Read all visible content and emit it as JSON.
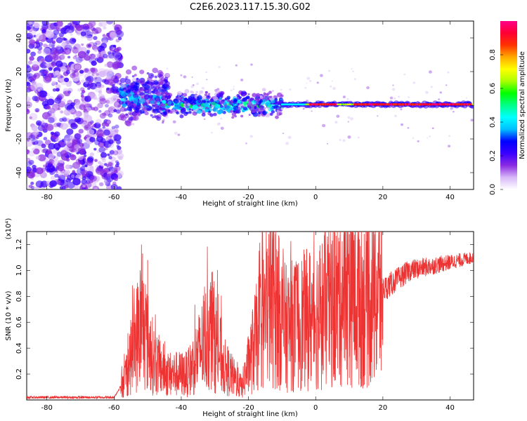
{
  "figure_title": "C2E6.2023.117.15.30.G02",
  "chart_data": [
    {
      "type": "heatmap",
      "xlabel": "Height of straight line (km)",
      "ylabel": "Frequency (Hz)",
      "xlim": [
        -86,
        47
      ],
      "ylim": [
        -50,
        50
      ],
      "x_ticks": [
        -80,
        -60,
        -40,
        -20,
        0,
        20,
        40
      ],
      "y_ticks": [
        -40,
        -20,
        0,
        20,
        40
      ],
      "colorbar": {
        "label": "Normalized spectral amplitude",
        "range": [
          0,
          1
        ],
        "ticks": [
          0.0,
          0.2,
          0.4,
          0.6,
          0.8
        ],
        "colormap": [
          "#ffffff",
          "#d8b8f8",
          "#8a2be2",
          "#3a00ff",
          "#0000ff",
          "#00bfff",
          "#00ffff",
          "#00ff88",
          "#00ff00",
          "#aaff00",
          "#ffff00",
          "#ffaa00",
          "#ff3300",
          "#ff0033",
          "#ff0088"
        ]
      },
      "description_regions": [
        {
          "x_range": [
            -86,
            -58
          ],
          "freq_spread": 50,
          "amplitude": 0.15
        },
        {
          "x_range": [
            -58,
            -45
          ],
          "freq_center": 5,
          "freq_spread": 12,
          "amplitude": 0.45
        },
        {
          "x_range": [
            -45,
            -10
          ],
          "freq_center": 0,
          "freq_spread": 6,
          "amplitude": 0.5
        },
        {
          "x_range": [
            -10,
            47
          ],
          "freq_center": 0,
          "freq_spread": 2,
          "amplitude": 0.95
        }
      ]
    },
    {
      "type": "line",
      "xlabel": "Height of straight line (km)",
      "ylabel": "SNR (10 * v/v)",
      "y_scale_label": "(x10⁴)",
      "xlim": [
        -86,
        47
      ],
      "ylim": [
        0,
        1.3
      ],
      "x_ticks": [
        -80,
        -60,
        -40,
        -20,
        0,
        20,
        40
      ],
      "y_ticks": [
        0.2,
        0.4,
        0.6,
        0.8,
        1.0,
        1.2
      ],
      "line_color": "#ee3333",
      "series_envelope": [
        {
          "x": -86,
          "y": 0.02
        },
        {
          "x": -60,
          "y": 0.02
        },
        {
          "x": -57,
          "y": 0.15
        },
        {
          "x": -52,
          "y": 0.6
        },
        {
          "x": -48,
          "y": 0.3
        },
        {
          "x": -44,
          "y": 0.2
        },
        {
          "x": -38,
          "y": 0.2
        },
        {
          "x": -31,
          "y": 0.55
        },
        {
          "x": -27,
          "y": 0.25
        },
        {
          "x": -22,
          "y": 0.1
        },
        {
          "x": -18,
          "y": 0.45
        },
        {
          "x": -13,
          "y": 0.8
        },
        {
          "x": -9,
          "y": 0.55
        },
        {
          "x": 0,
          "y": 0.65
        },
        {
          "x": 6,
          "y": 0.75
        },
        {
          "x": 10,
          "y": 0.9
        },
        {
          "x": 14,
          "y": 0.75
        },
        {
          "x": 20,
          "y": 0.85
        },
        {
          "x": 28,
          "y": 1.0
        },
        {
          "x": 47,
          "y": 1.1
        }
      ],
      "spikes": [
        {
          "x": -51.5,
          "y": 1.13
        },
        {
          "x": -50,
          "y": 1.08
        },
        {
          "x": -31,
          "y": 0.88
        },
        {
          "x": -12,
          "y": 1.28
        },
        {
          "x": -11,
          "y": 1.27
        },
        {
          "x": -13,
          "y": 0.9
        },
        {
          "x": 10,
          "y": 1.28
        },
        {
          "x": 13,
          "y": 1.24
        },
        {
          "x": 9,
          "y": 1.1
        },
        {
          "x": 10,
          "y": 0.17
        }
      ]
    }
  ]
}
